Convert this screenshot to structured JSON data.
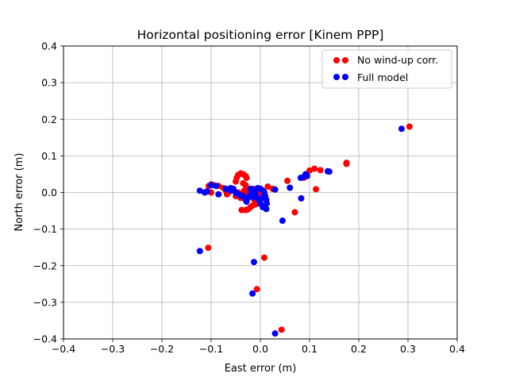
{
  "chart_data": {
    "type": "scatter",
    "title": "Horizontal positioning error [Kinem PPP]",
    "xlabel": "East error (m)",
    "ylabel": "North error (m)",
    "xlim": [
      -0.4,
      0.4
    ],
    "ylim": [
      -0.4,
      0.4
    ],
    "xticks": [
      -0.4,
      -0.3,
      -0.2,
      -0.1,
      0.0,
      0.1,
      0.2,
      0.3,
      0.4
    ],
    "yticks": [
      -0.4,
      -0.3,
      -0.2,
      -0.1,
      0.0,
      0.1,
      0.2,
      0.3,
      0.4
    ],
    "xtick_labels": [
      "−0.4",
      "−0.3",
      "−0.2",
      "−0.1",
      "0.0",
      "0.1",
      "0.2",
      "0.3",
      "0.4"
    ],
    "ytick_labels": [
      "−0.4",
      "−0.3",
      "−0.2",
      "−0.1",
      "0.0",
      "0.1",
      "0.2",
      "0.3",
      "0.4"
    ],
    "grid": true,
    "legend_position": "top-right",
    "series": [
      {
        "name": "No wind-up corr.",
        "color": "#ff0000",
        "points": [
          [
            0.303,
            0.18
          ],
          [
            0.175,
            0.081
          ],
          [
            0.175,
            0.078
          ],
          [
            0.122,
            0.061
          ],
          [
            0.11,
            0.065
          ],
          [
            0.1,
            0.06
          ],
          [
            0.088,
            0.04
          ],
          [
            0.113,
            0.009
          ],
          [
            0.055,
            0.032
          ],
          [
            0.07,
            -0.054
          ],
          [
            0.008,
            -0.178
          ],
          [
            -0.007,
            -0.264
          ],
          [
            0.043,
            -0.375
          ],
          [
            -0.106,
            -0.151
          ],
          [
            0.015,
            0.016
          ],
          [
            0.025,
            0.01
          ],
          [
            -0.105,
            0.018
          ],
          [
            -0.1,
            0.022
          ],
          [
            -0.1,
            0.0
          ],
          [
            -0.095,
            0.02
          ],
          [
            -0.085,
            0.018
          ],
          [
            -0.075,
            0.012
          ],
          [
            -0.07,
            0.005
          ],
          [
            -0.065,
            0.0
          ],
          [
            -0.068,
            -0.005
          ],
          [
            -0.055,
            0.01
          ],
          [
            -0.05,
            0.03
          ],
          [
            -0.048,
            0.04
          ],
          [
            -0.045,
            0.048
          ],
          [
            -0.04,
            0.052
          ],
          [
            -0.035,
            0.05
          ],
          [
            -0.03,
            0.045
          ],
          [
            -0.028,
            0.04
          ],
          [
            -0.035,
            0.025
          ],
          [
            -0.03,
            0.02
          ],
          [
            -0.028,
            0.01
          ],
          [
            -0.033,
            0.005
          ],
          [
            -0.025,
            0.0
          ],
          [
            -0.04,
            -0.015
          ],
          [
            -0.038,
            -0.048
          ],
          [
            -0.03,
            -0.048
          ],
          [
            -0.025,
            -0.046
          ],
          [
            -0.02,
            -0.04
          ],
          [
            -0.015,
            -0.035
          ],
          [
            -0.01,
            -0.032
          ],
          [
            -0.005,
            -0.03
          ],
          [
            -0.012,
            -0.02
          ],
          [
            -0.008,
            -0.01
          ],
          [
            -0.005,
            0.005
          ],
          [
            0.0,
            0.01
          ],
          [
            -0.002,
            0.0
          ],
          [
            -0.015,
            0.01
          ],
          [
            -0.02,
            -0.005
          ],
          [
            -0.045,
            0.0
          ],
          [
            -0.05,
            -0.01
          ]
        ]
      },
      {
        "name": "Full model",
        "color": "#0000ff",
        "points": [
          [
            0.287,
            0.174
          ],
          [
            0.137,
            0.058
          ],
          [
            0.14,
            0.057
          ],
          [
            0.092,
            0.05
          ],
          [
            0.09,
            0.044
          ],
          [
            0.082,
            0.04
          ],
          [
            0.095,
            0.045
          ],
          [
            0.06,
            0.013
          ],
          [
            0.083,
            -0.016
          ],
          [
            0.045,
            -0.077
          ],
          [
            -0.013,
            -0.19
          ],
          [
            -0.016,
            -0.276
          ],
          [
            0.03,
            -0.385
          ],
          [
            -0.123,
            -0.16
          ],
          [
            0.03,
            0.008
          ],
          [
            -0.123,
            0.005
          ],
          [
            -0.113,
            0.0
          ],
          [
            -0.108,
            0.003
          ],
          [
            -0.1,
            0.02
          ],
          [
            -0.09,
            0.018
          ],
          [
            -0.085,
            -0.005
          ],
          [
            -0.07,
            0.01
          ],
          [
            -0.06,
            0.012
          ],
          [
            -0.06,
            0.005
          ],
          [
            -0.055,
            0.01
          ],
          [
            -0.05,
            0.0
          ],
          [
            -0.045,
            -0.005
          ],
          [
            -0.04,
            -0.008
          ],
          [
            -0.035,
            -0.01
          ],
          [
            -0.03,
            -0.02
          ],
          [
            -0.025,
            -0.015
          ],
          [
            -0.02,
            -0.005
          ],
          [
            -0.015,
            0.0
          ],
          [
            -0.01,
            0.008
          ],
          [
            -0.005,
            0.012
          ],
          [
            0.0,
            0.01
          ],
          [
            0.005,
            0.005
          ],
          [
            0.008,
            0.0
          ],
          [
            0.01,
            -0.01
          ],
          [
            0.012,
            -0.02
          ],
          [
            0.013,
            -0.03
          ],
          [
            0.012,
            -0.045
          ],
          [
            0.005,
            -0.04
          ],
          [
            0.0,
            -0.03
          ],
          [
            -0.005,
            -0.018
          ],
          [
            -0.015,
            -0.012
          ],
          [
            -0.028,
            -0.025
          ],
          [
            -0.02,
            0.01
          ],
          [
            -0.01,
            -0.005
          ],
          [
            0.003,
            -0.015
          ]
        ]
      }
    ]
  }
}
